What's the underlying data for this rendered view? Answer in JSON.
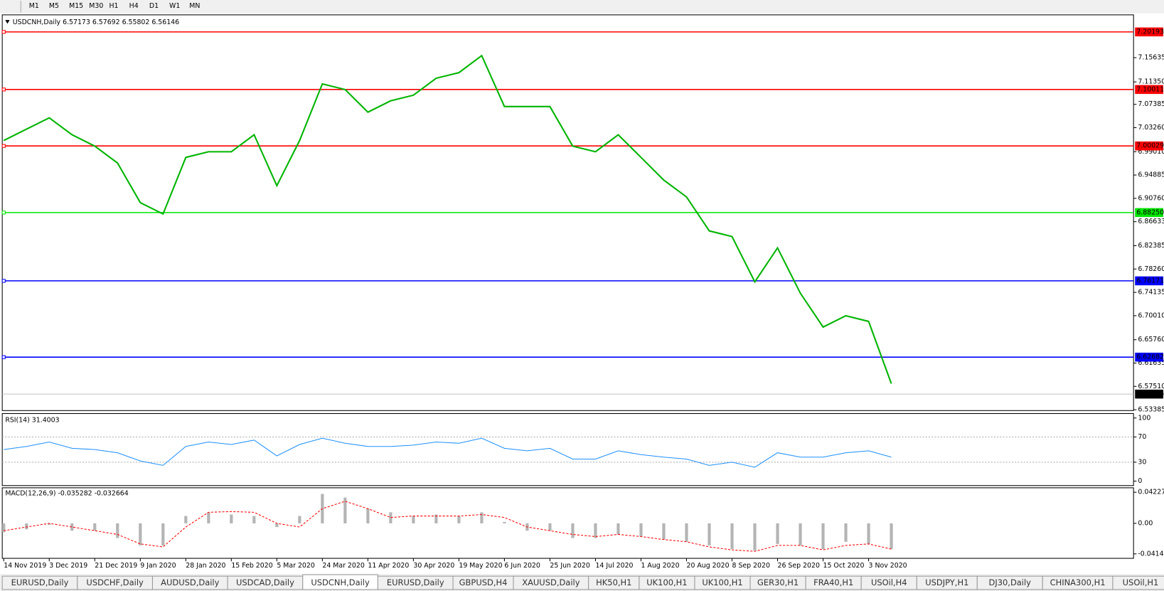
{
  "toolbar": {
    "timeframes": [
      "M1",
      "M5",
      "M15",
      "M30",
      "H1",
      "H4",
      "D1",
      "W1",
      "MN"
    ]
  },
  "chart_data": [
    {
      "type": "line",
      "title": "USDCNH,Daily 6.57173 6.57692 6.55802 6.56146",
      "color": "#00b400",
      "categories": [
        "14 Nov 2019",
        null,
        "3 Dec 2019",
        null,
        "21 Dec 2019",
        null,
        "9 Jan 2020",
        null,
        "28 Jan 2020",
        null,
        "15 Feb 2020",
        null,
        "5 Mar 2020",
        null,
        "24 Mar 2020",
        null,
        "11 Apr 2020",
        null,
        "30 Apr 2020",
        null,
        "19 May 2020",
        null,
        "6 Jun 2020",
        null,
        "25 Jun 2020",
        null,
        "14 Jul 2020",
        null,
        "1 Aug 2020",
        null,
        "20 Aug 2020",
        null,
        "8 Sep 2020",
        null,
        "26 Sep 2020",
        null,
        "15 Oct 2020",
        null,
        "3 Nov 2020",
        null
      ],
      "values": [
        7.01,
        7.03,
        7.05,
        7.02,
        7.0,
        6.97,
        6.9,
        6.88,
        6.98,
        6.99,
        6.99,
        7.02,
        6.93,
        7.01,
        7.11,
        7.1,
        7.06,
        7.08,
        7.09,
        7.12,
        7.13,
        7.16,
        7.07,
        7.07,
        7.07,
        7.0,
        6.99,
        7.02,
        6.98,
        6.94,
        6.91,
        6.85,
        6.84,
        6.76,
        6.82,
        6.74,
        6.68,
        6.7,
        6.69,
        6.58
      ],
      "ylim": [
        6.5323,
        7.2321
      ],
      "yticks": [
        7.15635,
        {
          "value": 7.1135,
          "label": "7.11350"
        },
        7.07385,
        {
          "value": 7.0326,
          "label": "7.03260"
        },
        {
          "value": 6.9901,
          "label": "6.99010"
        },
        6.94885,
        {
          "value": 6.9076,
          "label": "6.90760"
        },
        6.86633,
        6.82385,
        {
          "value": 6.7826,
          "label": "6.78260"
        },
        6.74135,
        {
          "value": 6.7001,
          "label": "6.70010"
        },
        {
          "value": 6.6576,
          "label": "6.65760"
        },
        6.61635,
        {
          "value": 6.5751,
          "label": "6.57510"
        },
        6.53385
      ],
      "levels": [
        {
          "value": 7.20193,
          "color": "#ff0000"
        },
        {
          "value": 7.10011,
          "color": "#ff0000"
        },
        {
          "value": 7.00029,
          "color": "#ff0000"
        },
        {
          "value": 6.8825,
          "label": "6.88250",
          "color": "#00e600"
        },
        {
          "value": 6.76171,
          "color": "#0000ff"
        },
        {
          "value": 6.62682,
          "color": "#0000ff"
        }
      ],
      "current": 6.56146
    },
    {
      "type": "line",
      "title": "RSI(14) 31.4003",
      "color": "#1e90ff",
      "values": [
        50,
        55,
        62,
        52,
        50,
        45,
        32,
        25,
        55,
        62,
        58,
        65,
        40,
        58,
        68,
        60,
        55,
        55,
        57,
        62,
        60,
        68,
        52,
        48,
        52,
        35,
        35,
        48,
        42,
        38,
        35,
        25,
        30,
        22,
        45,
        38,
        38,
        45,
        48,
        38
      ],
      "ylim": [
        0,
        100
      ],
      "yticks": [
        100,
        70,
        30,
        0
      ],
      "levels": [
        70,
        30
      ]
    },
    {
      "type": "macd",
      "title": "MACD(12,26,9) -0.035282 -0.032664",
      "histogram_color": "#b4b4b4",
      "signal_color": "#ff0000",
      "histogram": [
        -0.012,
        -0.008,
        -0.002,
        -0.01,
        -0.01,
        -0.02,
        -0.03,
        -0.03,
        0.01,
        0.015,
        0.012,
        0.01,
        -0.005,
        0.01,
        0.04,
        0.035,
        0.02,
        0.015,
        0.01,
        0.012,
        0.01,
        0.015,
        0.002,
        -0.01,
        -0.01,
        -0.02,
        -0.02,
        -0.015,
        -0.018,
        -0.022,
        -0.025,
        -0.03,
        -0.035,
        -0.037,
        -0.028,
        -0.03,
        -0.035,
        -0.025,
        -0.028,
        -0.035
      ],
      "signal": [
        -0.01,
        -0.005,
        0,
        -0.005,
        -0.01,
        -0.015,
        -0.028,
        -0.032,
        -0.005,
        0.015,
        0.016,
        0.015,
        0,
        -0.005,
        0.02,
        0.03,
        0.02,
        0.008,
        0.01,
        0.01,
        0.01,
        0.012,
        0.008,
        -0.005,
        -0.01,
        -0.015,
        -0.018,
        -0.015,
        -0.018,
        -0.022,
        -0.025,
        -0.032,
        -0.036,
        -0.038,
        -0.03,
        -0.03,
        -0.036,
        -0.03,
        -0.028,
        -0.035
      ],
      "ylim": [
        -0.04148,
        0.042275
      ],
      "yticks": [
        0.042275,
        {
          "value": 0,
          "label": "0.00"
        },
        -0.04148
      ]
    }
  ],
  "tabs": {
    "items": [
      "EURUSD,Daily",
      "USDCHF,Daily",
      "AUDUSD,Daily",
      "USDCAD,Daily",
      "USDCNH,Daily",
      "EURUSD,Daily",
      "GBPUSD,H4",
      "XAUUSD,Daily",
      "HK50,H1",
      "UK100,H1",
      "UK100,H1",
      "GER30,H1",
      "FRA40,H1",
      "USOil,H4",
      "USDJPY,H1",
      "DJ30,Daily",
      "CHINA300,H1",
      "USOil,H1"
    ],
    "active": 4
  }
}
